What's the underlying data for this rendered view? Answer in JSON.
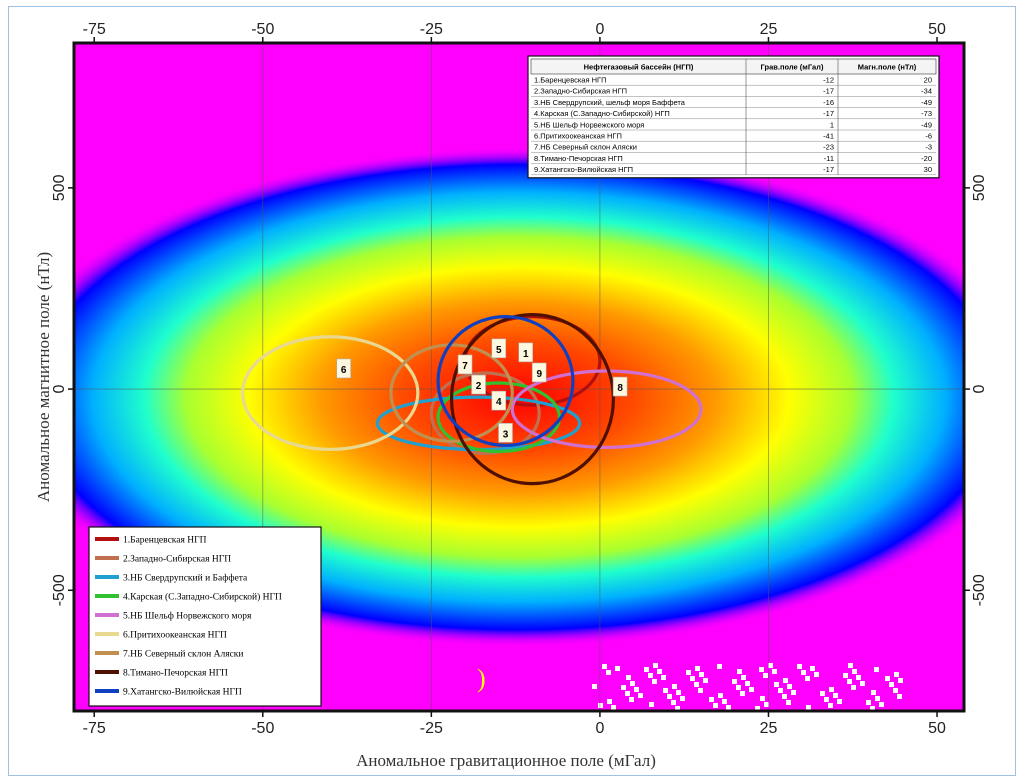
{
  "chart_data": {
    "type": "scatter",
    "subtype": "density heatmap with confidence ellipses",
    "xlabel": "Аномальное гравитационное поле (мГал)",
    "ylabel": "Аномальное магнитное поле (нТл)",
    "xlim": [
      -78,
      54
    ],
    "ylim": [
      -800,
      860
    ],
    "x_ticks": [
      -75,
      -50,
      -25,
      0,
      25,
      50
    ],
    "y_ticks": [
      -500,
      0,
      500
    ],
    "grid": true,
    "gridlines_at": {
      "x": [
        -50,
        -25,
        0,
        25
      ],
      "y": [
        0
      ]
    },
    "colorscale": [
      "#ff00ff",
      "#0000ff",
      "#00b0ff",
      "#00ffcc",
      "#40ff40",
      "#ffff00",
      "#ffa500",
      "#ff5000",
      "#ff0000"
    ],
    "table": {
      "headers": [
        "Нефтегазовый бассейн (НГП)",
        "Грав.поле (мГал)",
        "Магн.поле (нТл)"
      ],
      "rows": [
        [
          "1.Баренцевская НГП",
          "-12",
          "20"
        ],
        [
          "2.Западно-Сибирская НГП",
          "-17",
          "-34"
        ],
        [
          "3.НБ Свердрупский, шельф моря Баффета",
          "-16",
          "-49"
        ],
        [
          "4.Карская (С.Западно-Сибирской) НГП",
          "-17",
          "-73"
        ],
        [
          "5.НБ Шельф Норвежского моря",
          "1",
          "-49"
        ],
        [
          "6.Притихоокеанская НГП",
          "-41",
          "-6"
        ],
        [
          "7.НБ Северный склон Аляски",
          "-23",
          "-3"
        ],
        [
          "8.Тимано-Печорская НГП",
          "-11",
          "-20"
        ],
        [
          "9.Хатангско-Вилюйская НГП",
          "-17",
          "30"
        ]
      ]
    },
    "legend": {
      "position": "bottom-left",
      "entries": [
        {
          "name": "1.Баренцевская НГП",
          "color": "#b01010"
        },
        {
          "name": "2.Западно-Сибирская НГП",
          "color": "#c07050"
        },
        {
          "name": "3.НБ Свердрупский и Баффета",
          "color": "#20a0d0"
        },
        {
          "name": "4.Карская (С.Западно-Сибирской) НГП",
          "color": "#30c030"
        },
        {
          "name": "5.НБ Шельф Норвежского моря",
          "color": "#d070d0"
        },
        {
          "name": "6.Притихоокеанская НГП",
          "color": "#e8d890"
        },
        {
          "name": "7.НБ Северный склон Аляски",
          "color": "#c09050"
        },
        {
          "name": "8.Тимано-Печорская НГП",
          "color": "#501000"
        },
        {
          "name": "9.Хатангско-Вилюйская НГП",
          "color": "#1040c0"
        }
      ]
    },
    "ellipses": [
      {
        "label": "1",
        "cx": -10,
        "cy": 70,
        "rx": 10,
        "ry": 110,
        "color": "#b01010"
      },
      {
        "label": "2",
        "cx": -17,
        "cy": -60,
        "rx": 8,
        "ry": 100,
        "color": "#c07050"
      },
      {
        "label": "3",
        "cx": -18,
        "cy": -85,
        "rx": 15,
        "ry": 65,
        "color": "#20a0d0"
      },
      {
        "label": "4",
        "cx": -15,
        "cy": -70,
        "rx": 9,
        "ry": 85,
        "color": "#30c030"
      },
      {
        "label": "5",
        "cx": 1,
        "cy": -50,
        "rx": 14,
        "ry": 95,
        "color": "#d070d0"
      },
      {
        "label": "6",
        "cx": -40,
        "cy": -10,
        "rx": 13,
        "ry": 140,
        "color": "#e8d890"
      },
      {
        "label": "7",
        "cx": -22,
        "cy": -10,
        "rx": 9,
        "ry": 120,
        "color": "#c09050"
      },
      {
        "label": "8",
        "cx": -10,
        "cy": -25,
        "rx": 12,
        "ry": 210,
        "color": "#501000"
      },
      {
        "label": "9",
        "cx": -14,
        "cy": 20,
        "rx": 10,
        "ry": 160,
        "color": "#1040c0"
      }
    ],
    "point_labels": [
      {
        "label": "1",
        "x": -11,
        "y": 90
      },
      {
        "label": "2",
        "x": -18,
        "y": 10
      },
      {
        "label": "3",
        "x": -14,
        "y": -110
      },
      {
        "label": "4",
        "x": -15,
        "y": -30
      },
      {
        "label": "5",
        "x": -15,
        "y": 100
      },
      {
        "label": "6",
        "x": -38,
        "y": 50
      },
      {
        "label": "7",
        "x": -20,
        "y": 60
      },
      {
        "label": "8",
        "x": 3,
        "y": 5
      },
      {
        "label": "9",
        "x": -9,
        "y": 40
      }
    ]
  }
}
